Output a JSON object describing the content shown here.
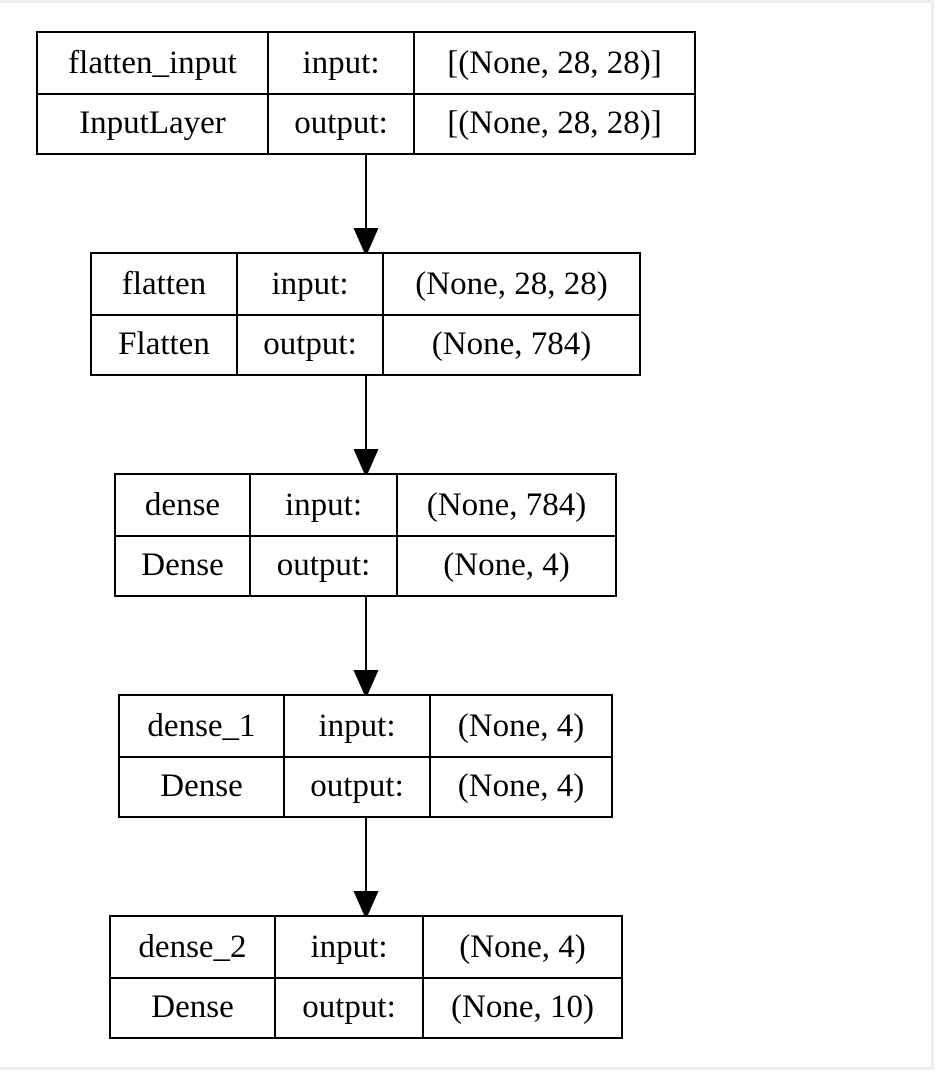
{
  "colors": {
    "stroke": "#000000",
    "background": "#ffffff",
    "frame": "#eeeeee"
  },
  "nodes": [
    {
      "name": "flatten_input",
      "type": "InputLayer",
      "input_label": "input:",
      "output_label": "output:",
      "input_shape": "[(None, 28, 28)]",
      "output_shape": "[(None, 28, 28)]"
    },
    {
      "name": "flatten",
      "type": "Flatten",
      "input_label": "input:",
      "output_label": "output:",
      "input_shape": "(None, 28, 28)",
      "output_shape": "(None, 784)"
    },
    {
      "name": "dense",
      "type": "Dense",
      "input_label": "input:",
      "output_label": "output:",
      "input_shape": "(None, 784)",
      "output_shape": "(None, 4)"
    },
    {
      "name": "dense_1",
      "type": "Dense",
      "input_label": "input:",
      "output_label": "output:",
      "input_shape": "(None, 4)",
      "output_shape": "(None, 4)"
    },
    {
      "name": "dense_2",
      "type": "Dense",
      "input_label": "input:",
      "output_label": "output:",
      "input_shape": "(None, 4)",
      "output_shape": "(None, 10)"
    }
  ],
  "edges": [
    {
      "from": "flatten_input",
      "to": "flatten"
    },
    {
      "from": "flatten",
      "to": "dense"
    },
    {
      "from": "dense",
      "to": "dense_1"
    },
    {
      "from": "dense_1",
      "to": "dense_2"
    }
  ]
}
